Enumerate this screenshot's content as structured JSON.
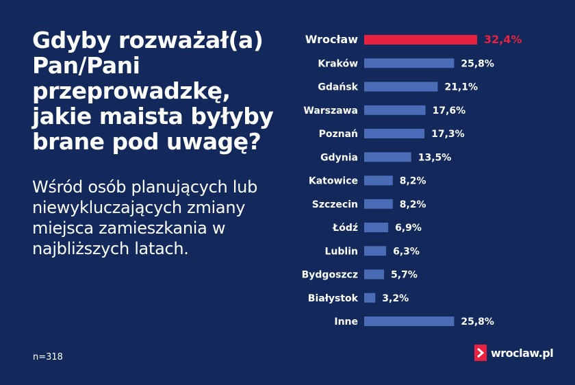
{
  "title": "Gdyby rozważał(a) Pan/Pani przeprowadzkę, jakie maista byłyby brane pod uwagę?",
  "subtitle": "Wśród osób planujących lub niewykluczających zmiany miejsca zamieszkania w najbliższych latach.",
  "sample_size": "n=318",
  "logo_text": "wroclaw.pl",
  "colors": {
    "background": "#13295b",
    "bar": "#4a6bb5",
    "highlight": "#e8213f",
    "text": "#ffffff"
  },
  "chart_data": {
    "type": "bar",
    "orientation": "horizontal",
    "unit": "%",
    "highlight_category": "Wrocław",
    "categories": [
      "Wrocław",
      "Kraków",
      "Gdańsk",
      "Warszawa",
      "Poznań",
      "Gdynia",
      "Katowice",
      "Szczecin",
      "Łódź",
      "Lublin",
      "Bydgoszcz",
      "Białystok",
      "Inne"
    ],
    "values": [
      32.4,
      25.8,
      21.1,
      17.6,
      17.3,
      13.5,
      8.2,
      8.2,
      6.9,
      6.3,
      5.7,
      3.2,
      25.8
    ],
    "value_labels": [
      "32,4%",
      "25,8%",
      "21,1%",
      "17,6%",
      "17,3%",
      "13,5%",
      "8,2%",
      "8,2%",
      "6,9%",
      "6,3%",
      "5,7%",
      "3,2%",
      "25,8%"
    ],
    "title": "",
    "xlabel": "",
    "ylabel": "",
    "grid": false,
    "legend": "none"
  }
}
